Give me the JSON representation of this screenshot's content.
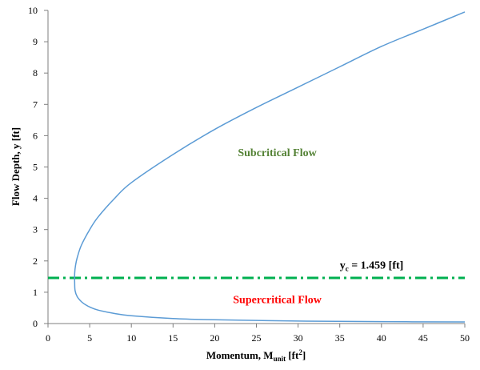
{
  "chart_data": {
    "type": "line",
    "xlabel": {
      "main": "Momentum, M",
      "sub": "unit",
      "unit_pre": " [ft",
      "sup": "2",
      "unit_post": "]"
    },
    "ylabel": "Flow Depth, y [ft]",
    "xlim": [
      0,
      50
    ],
    "ylim": [
      0,
      10
    ],
    "xticks": [
      "0",
      "5",
      "10",
      "15",
      "20",
      "25",
      "30",
      "35",
      "40",
      "45",
      "50"
    ],
    "yticks": [
      "0",
      "1",
      "2",
      "3",
      "4",
      "5",
      "6",
      "7",
      "8",
      "9",
      "10"
    ],
    "grid": false,
    "series": [
      {
        "color": "#5b9bd5",
        "x": [
          50.0,
          40.0,
          30.0,
          20.0,
          15.0,
          10.0,
          8.0,
          6.0,
          5.0,
          4.5,
          4.0,
          3.5,
          3.25,
          3.2,
          3.2,
          3.3,
          3.5,
          4.0,
          5.0,
          6.0,
          8.0,
          10.0,
          15.0,
          20.0,
          25.0,
          30.0,
          35.0,
          40.0,
          45.0,
          50.0
        ],
        "y": [
          0.05,
          0.06,
          0.08,
          0.12,
          0.16,
          0.25,
          0.32,
          0.43,
          0.53,
          0.6,
          0.7,
          0.86,
          1.05,
          1.3,
          1.6,
          1.85,
          2.1,
          2.5,
          3.0,
          3.4,
          4.0,
          4.5,
          5.4,
          6.2,
          6.9,
          7.55,
          8.2,
          8.85,
          9.4,
          9.95
        ]
      }
    ],
    "critical_line": {
      "y": 1.459,
      "color": "#00b050",
      "style": "dash-dot"
    },
    "annotations": {
      "critical": {
        "prefix": "y",
        "sub": "c",
        "text": " = 1.459 [ft]",
        "x": 35,
        "y": 1.75
      },
      "subcritical": {
        "text": "Subcritical Flow",
        "x": 27.5,
        "y": 5.35,
        "color": "#548235"
      },
      "supercritical": {
        "text": "Supercritical Flow",
        "x": 27.5,
        "y": 0.65,
        "color": "#ff0000"
      }
    }
  }
}
